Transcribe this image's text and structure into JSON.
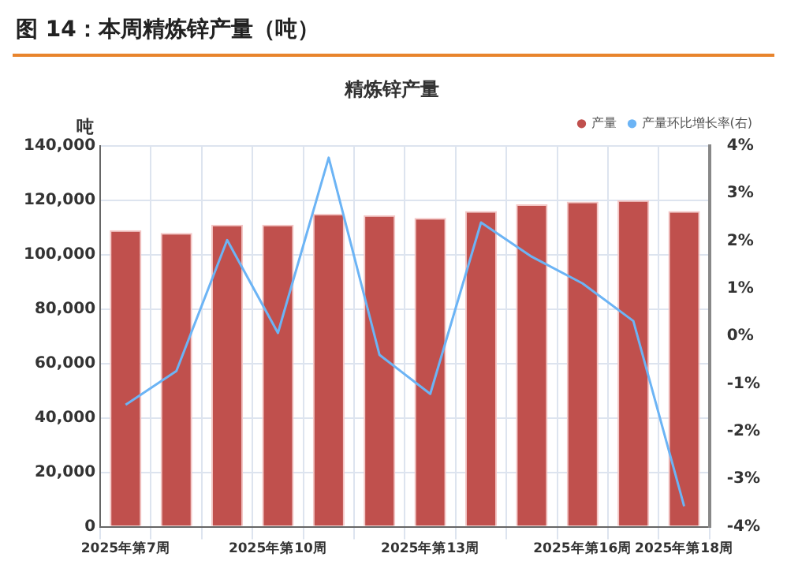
{
  "chart_data": {
    "type": "bar",
    "title": "图 14：本周精炼锌产量（吨）",
    "subtitle": "精炼锌产量",
    "ylabel": "吨",
    "categories": [
      "2025年第7周",
      null,
      null,
      "2025年第10周",
      null,
      null,
      "2025年第13周",
      null,
      null,
      "2025年第16周",
      null,
      "2025年第18周"
    ],
    "series": [
      {
        "name": "产量",
        "color": "#c0504d",
        "values": [
          109000,
          108000,
          111000,
          111000,
          115000,
          114500,
          113500,
          116000,
          118500,
          119500,
          120000,
          116000
        ]
      },
      {
        "name": "产量环比增长率(右)",
        "type": "line",
        "axis": "y2",
        "color": "#6cb4f5",
        "values": [
          -1.44,
          -0.73,
          2.02,
          0.07,
          3.75,
          -0.39,
          -1.21,
          2.39,
          1.67,
          1.11,
          0.32,
          -3.57
        ]
      }
    ],
    "ylim": [
      0,
      140000
    ],
    "yticks": [
      {
        "value": 0,
        "label": "0"
      },
      {
        "value": 20000,
        "label": "20,000"
      },
      {
        "value": 40000,
        "label": "40,000"
      },
      {
        "value": 60000,
        "label": "60,000"
      },
      {
        "value": 80000,
        "label": "80,000"
      },
      {
        "value": 100000,
        "label": "100,000"
      },
      {
        "value": 120000,
        "label": "120,000"
      },
      {
        "value": 140000,
        "label": "140,000"
      }
    ],
    "y2lim": [
      -4,
      4
    ],
    "y2ticks": [
      {
        "value": -4,
        "label": "-4%"
      },
      {
        "value": -3,
        "label": "-3%"
      },
      {
        "value": -2,
        "label": "-2%"
      },
      {
        "value": -1,
        "label": "-1%"
      },
      {
        "value": 0,
        "label": "0%"
      },
      {
        "value": 1,
        "label": "1%"
      },
      {
        "value": 2,
        "label": "2%"
      },
      {
        "value": 3,
        "label": "3%"
      },
      {
        "value": 4,
        "label": "4%"
      }
    ],
    "grid": true,
    "legend": "top right",
    "marker": "none"
  }
}
